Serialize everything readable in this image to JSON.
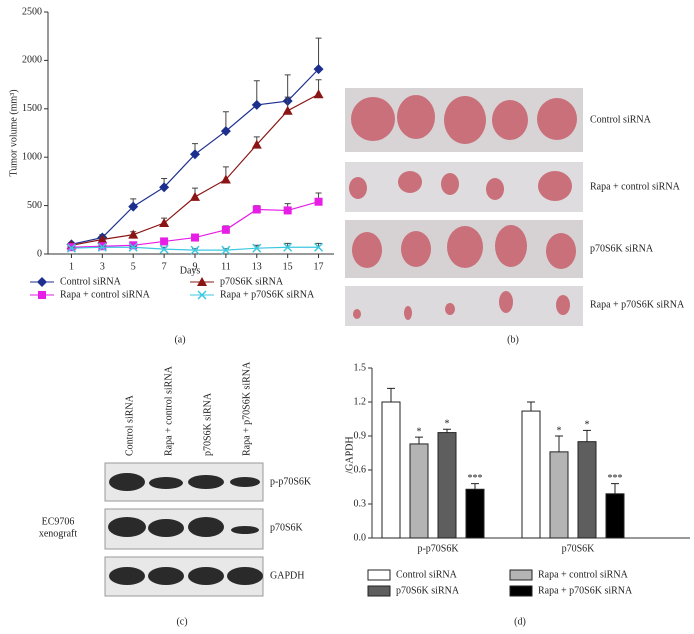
{
  "chart_data": [
    {
      "type": "line",
      "xlabel": "Days",
      "ylabel": "Tumor volume (mm³)",
      "panel": "(a)",
      "x": [
        1,
        3,
        5,
        7,
        9,
        11,
        13,
        15,
        17
      ],
      "xlim": [
        0,
        18
      ],
      "xticks": [
        1,
        3,
        5,
        7,
        9,
        11,
        13,
        15,
        17
      ],
      "ylim": [
        0,
        2500
      ],
      "yticks": [
        0,
        500,
        1000,
        1500,
        2000,
        2500
      ],
      "series": [
        {
          "name": "Control siRNA",
          "color": "#1c2f8f",
          "marker": "diamond",
          "values": [
            100,
            170,
            490,
            690,
            1030,
            1270,
            1540,
            1580,
            1910
          ],
          "errors": [
            20,
            30,
            80,
            90,
            110,
            200,
            250,
            270,
            320
          ]
        },
        {
          "name": "p70S6K siRNA",
          "color": "#8b1414",
          "marker": "triangle",
          "values": [
            90,
            150,
            200,
            320,
            590,
            770,
            1130,
            1480,
            1650
          ],
          "errors": [
            15,
            20,
            30,
            50,
            90,
            130,
            80,
            140,
            150
          ]
        },
        {
          "name": "Rapa + control siRNA",
          "color": "#e61ee6",
          "marker": "square",
          "values": [
            70,
            80,
            90,
            130,
            170,
            250,
            460,
            450,
            540
          ],
          "errors": [
            10,
            10,
            15,
            20,
            30,
            40,
            40,
            70,
            90
          ]
        },
        {
          "name": "Rapa + p70S6K siRNA",
          "color": "#3cc8e0",
          "marker": "x",
          "values": [
            60,
            70,
            70,
            50,
            40,
            40,
            60,
            70,
            70
          ],
          "errors": [
            10,
            10,
            10,
            20,
            15,
            15,
            30,
            40,
            40
          ]
        }
      ]
    },
    {
      "type": "bar",
      "ylabel": "/GAPDH",
      "panel": "(d)",
      "categories": [
        "p-p70S6K",
        "p70S6K"
      ],
      "ylim": [
        0,
        1.5
      ],
      "yticks": [
        {
          "value": 0,
          "label": "0.0"
        },
        0.3,
        0.6,
        0.9,
        1.2,
        1.5
      ],
      "series": [
        {
          "name": "Control siRNA",
          "color": "#ffffff",
          "values": [
            1.2,
            1.12
          ],
          "errors": [
            0.12,
            0.08
          ]
        },
        {
          "name": "Rapa + control siRNA",
          "color": "#b4b4b4",
          "values": [
            0.83,
            0.76
          ],
          "errors": [
            0.06,
            0.14
          ],
          "significance": [
            "*",
            "*"
          ]
        },
        {
          "name": "p70S6K siRNA",
          "color": "#5e5e5e",
          "values": [
            0.93,
            0.85
          ],
          "errors": [
            0.03,
            0.1
          ],
          "significance": [
            "*",
            "*"
          ]
        },
        {
          "name": "Rapa + p70S6K siRNA",
          "color": "#000000",
          "values": [
            0.43,
            0.39
          ],
          "errors": [
            0.05,
            0.09
          ],
          "significance": [
            "***",
            "***"
          ]
        }
      ]
    }
  ],
  "photos": {
    "panel": "(b)",
    "rows": [
      "Control siRNA",
      "Rapa + control siRNA",
      "p70S6K siRNA",
      "Rapa + p70S6K siRNA"
    ]
  },
  "blot": {
    "panel": "(c)",
    "lanes": [
      "Control siRNA",
      "Rapa + control siRNA",
      "p70S6K siRNA",
      "Rapa + p70S6K siRNA"
    ],
    "bands": [
      "p-p70S6K",
      "p70S6K",
      "GAPDH"
    ],
    "sample": [
      "EC9706",
      "xenograft"
    ]
  }
}
